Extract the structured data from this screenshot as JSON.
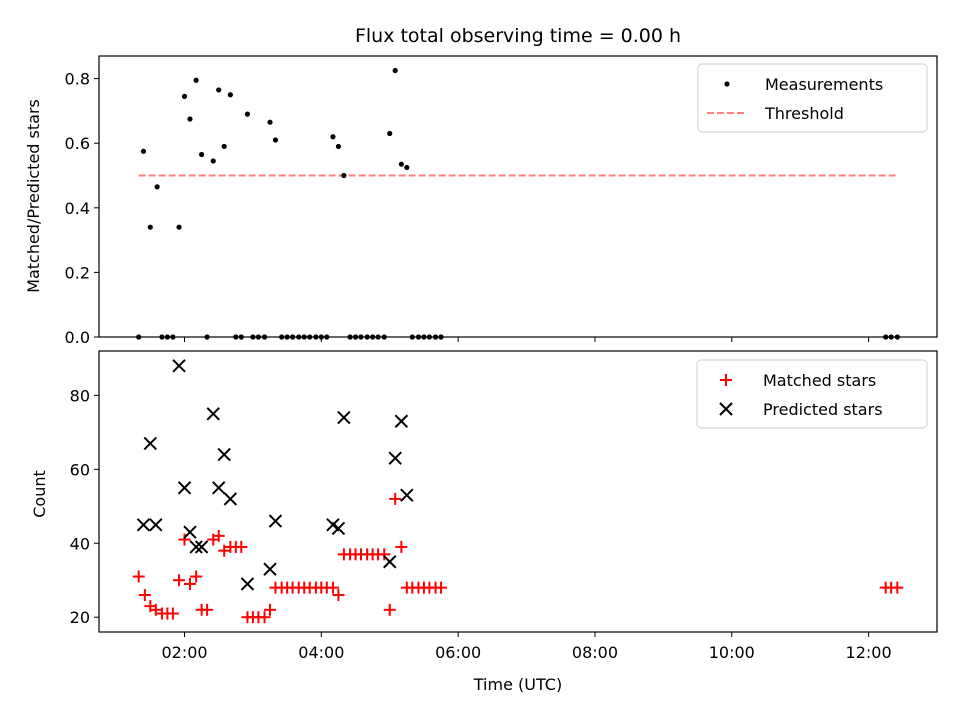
{
  "title": "Flux total observing time = 0.00 h",
  "colors": {
    "measurement": "#000000",
    "threshold": "#ff7f7f",
    "matched": "#ff0000",
    "predicted": "#000000"
  },
  "chart_data": [
    {
      "type": "scatter",
      "ylabel": "Matched/Predicted stars",
      "xlim": [
        0.75,
        13.0
      ],
      "ylim": [
        0.0,
        0.87
      ],
      "yticks": [
        0.0,
        0.2,
        0.4,
        0.6,
        0.8
      ],
      "ytick_labels": [
        "0.0",
        "0.2",
        "0.4",
        "0.6",
        "0.8"
      ],
      "legend": [
        "Measurements",
        "Threshold"
      ],
      "legend_position": "top-right",
      "threshold": {
        "value": 0.5,
        "x_start": 1.33,
        "x_end": 12.4
      },
      "measurements": [
        [
          1.33,
          0.0
        ],
        [
          1.4,
          0.575
        ],
        [
          1.5,
          0.34
        ],
        [
          1.6,
          0.465
        ],
        [
          1.67,
          0.0
        ],
        [
          1.75,
          0.0
        ],
        [
          1.83,
          0.0
        ],
        [
          1.92,
          0.34
        ],
        [
          2.0,
          0.745
        ],
        [
          2.08,
          0.675
        ],
        [
          2.17,
          0.795
        ],
        [
          2.25,
          0.565
        ],
        [
          2.33,
          0.0
        ],
        [
          2.42,
          0.545
        ],
        [
          2.5,
          0.765
        ],
        [
          2.58,
          0.59
        ],
        [
          2.67,
          0.75
        ],
        [
          2.75,
          0.0
        ],
        [
          2.83,
          0.0
        ],
        [
          2.92,
          0.69
        ],
        [
          3.0,
          0.0
        ],
        [
          3.08,
          0.0
        ],
        [
          3.17,
          0.0
        ],
        [
          3.25,
          0.665
        ],
        [
          3.33,
          0.61
        ],
        [
          3.42,
          0.0
        ],
        [
          3.5,
          0.0
        ],
        [
          3.58,
          0.0
        ],
        [
          3.67,
          0.0
        ],
        [
          3.75,
          0.0
        ],
        [
          3.83,
          0.0
        ],
        [
          3.92,
          0.0
        ],
        [
          4.0,
          0.0
        ],
        [
          4.08,
          0.0
        ],
        [
          4.17,
          0.62
        ],
        [
          4.25,
          0.59
        ],
        [
          4.33,
          0.5
        ],
        [
          4.42,
          0.0
        ],
        [
          4.5,
          0.0
        ],
        [
          4.58,
          0.0
        ],
        [
          4.67,
          0.0
        ],
        [
          4.75,
          0.0
        ],
        [
          4.83,
          0.0
        ],
        [
          4.92,
          0.0
        ],
        [
          5.0,
          0.63
        ],
        [
          5.08,
          0.825
        ],
        [
          5.17,
          0.535
        ],
        [
          5.25,
          0.525
        ],
        [
          5.33,
          0.0
        ],
        [
          5.42,
          0.0
        ],
        [
          5.5,
          0.0
        ],
        [
          5.58,
          0.0
        ],
        [
          5.67,
          0.0
        ],
        [
          5.75,
          0.0
        ],
        [
          12.25,
          0.0
        ],
        [
          12.33,
          0.0
        ],
        [
          12.42,
          0.0
        ]
      ]
    },
    {
      "type": "scatter",
      "xlabel": "Time (UTC)",
      "ylabel": "Count",
      "xlim": [
        0.75,
        13.0
      ],
      "ylim": [
        16,
        92
      ],
      "yticks": [
        20,
        40,
        60,
        80
      ],
      "ytick_labels": [
        "20",
        "40",
        "60",
        "80"
      ],
      "xticks": [
        2,
        4,
        6,
        8,
        10,
        12
      ],
      "xtick_labels": [
        "02:00",
        "04:00",
        "06:00",
        "08:00",
        "10:00",
        "12:00"
      ],
      "legend": [
        "Matched stars",
        "Predicted stars"
      ],
      "legend_position": "top-right",
      "matched": [
        [
          1.33,
          31
        ],
        [
          1.42,
          26
        ],
        [
          1.5,
          23
        ],
        [
          1.58,
          22
        ],
        [
          1.67,
          21
        ],
        [
          1.75,
          21
        ],
        [
          1.83,
          21
        ],
        [
          1.92,
          30
        ],
        [
          2.0,
          41
        ],
        [
          2.08,
          29
        ],
        [
          2.17,
          31
        ],
        [
          2.25,
          22
        ],
        [
          2.33,
          22
        ],
        [
          2.42,
          41
        ],
        [
          2.5,
          42
        ],
        [
          2.58,
          38
        ],
        [
          2.67,
          39
        ],
        [
          2.75,
          39
        ],
        [
          2.83,
          39
        ],
        [
          2.92,
          20
        ],
        [
          3.0,
          20
        ],
        [
          3.08,
          20
        ],
        [
          3.17,
          20
        ],
        [
          3.25,
          22
        ],
        [
          3.33,
          28
        ],
        [
          3.42,
          28
        ],
        [
          3.5,
          28
        ],
        [
          3.58,
          28
        ],
        [
          3.67,
          28
        ],
        [
          3.75,
          28
        ],
        [
          3.83,
          28
        ],
        [
          3.92,
          28
        ],
        [
          4.0,
          28
        ],
        [
          4.08,
          28
        ],
        [
          4.17,
          28
        ],
        [
          4.25,
          26
        ],
        [
          4.33,
          37
        ],
        [
          4.42,
          37
        ],
        [
          4.5,
          37
        ],
        [
          4.58,
          37
        ],
        [
          4.67,
          37
        ],
        [
          4.75,
          37
        ],
        [
          4.83,
          37
        ],
        [
          4.92,
          37
        ],
        [
          5.0,
          22
        ],
        [
          5.08,
          52
        ],
        [
          5.17,
          39
        ],
        [
          5.25,
          28
        ],
        [
          5.33,
          28
        ],
        [
          5.42,
          28
        ],
        [
          5.5,
          28
        ],
        [
          5.58,
          28
        ],
        [
          5.67,
          28
        ],
        [
          5.75,
          28
        ],
        [
          12.25,
          28
        ],
        [
          12.33,
          28
        ],
        [
          12.42,
          28
        ]
      ],
      "predicted": [
        [
          1.4,
          45
        ],
        [
          1.5,
          67
        ],
        [
          1.58,
          45
        ],
        [
          1.92,
          88
        ],
        [
          2.0,
          55
        ],
        [
          2.08,
          43
        ],
        [
          2.17,
          39
        ],
        [
          2.25,
          39
        ],
        [
          2.42,
          75
        ],
        [
          2.5,
          55
        ],
        [
          2.58,
          64
        ],
        [
          2.67,
          52
        ],
        [
          2.92,
          29
        ],
        [
          3.25,
          33
        ],
        [
          3.33,
          46
        ],
        [
          4.17,
          45
        ],
        [
          4.25,
          44
        ],
        [
          4.33,
          74
        ],
        [
          5.0,
          35
        ],
        [
          5.08,
          63
        ],
        [
          5.17,
          73
        ],
        [
          5.25,
          53
        ]
      ]
    }
  ]
}
